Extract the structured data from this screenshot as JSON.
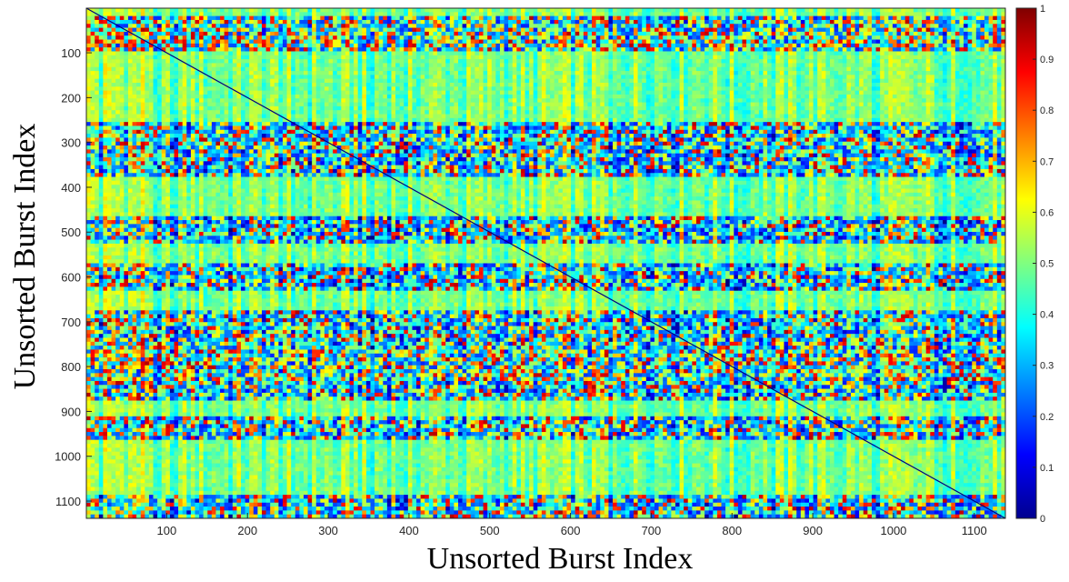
{
  "chart_data": {
    "type": "heatmap",
    "title": "",
    "xlabel": "Unsorted Burst Index",
    "ylabel": "Unsorted Burst Index",
    "n": 1138,
    "xlim": [
      1,
      1138
    ],
    "ylim": [
      1,
      1138
    ],
    "y_direction": "reverse",
    "x_ticks": [
      100,
      200,
      300,
      400,
      500,
      600,
      700,
      800,
      900,
      1000,
      1100
    ],
    "y_ticks": [
      100,
      200,
      300,
      400,
      500,
      600,
      700,
      800,
      900,
      1000,
      1100
    ],
    "colorbar": {
      "min": 0,
      "max": 1,
      "ticks": [
        0,
        0.1,
        0.2,
        0.3,
        0.4,
        0.5,
        0.6,
        0.7,
        0.8,
        0.9,
        1
      ],
      "colormap": "jet"
    },
    "diagonal_value": 0,
    "typical_off_diagonal_range": [
      0.2,
      0.8
    ],
    "grid": false,
    "legend": "none"
  }
}
